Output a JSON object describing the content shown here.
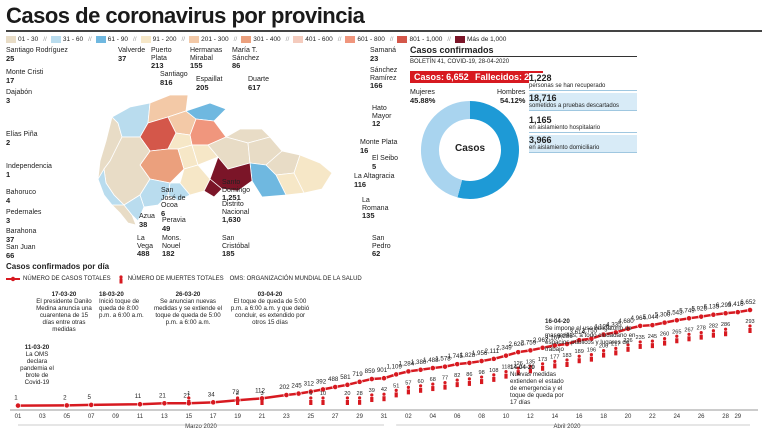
{
  "title": "Casos de coronavirus por provincia",
  "legend": [
    {
      "label": "01 - 30",
      "color": "#e8dcc6"
    },
    {
      "label": "31 - 60",
      "color": "#b9dcee"
    },
    {
      "label": "61 - 90",
      "color": "#6fb8e0"
    },
    {
      "label": "91 - 200",
      "color": "#f6e7c7"
    },
    {
      "label": "201 - 300",
      "color": "#f3c9a7"
    },
    {
      "label": "301 - 400",
      "color": "#eba07d"
    },
    {
      "label": "401 - 600",
      "color": "#f4cbbd"
    },
    {
      "label": "601 - 800",
      "color": "#f0967d"
    },
    {
      "label": "801 - 1,000",
      "color": "#d4574a"
    },
    {
      "label": "Más de 1,000",
      "color": "#7b1528"
    }
  ],
  "map_labels": {
    "santiago_rodriguez": {
      "name": "Santiago Rodríguez",
      "value": "25"
    },
    "monte_cristi": {
      "name": "Monte Cristi",
      "value": "17"
    },
    "valverde": {
      "name": "Valverde",
      "value": "37"
    },
    "puerto_plata": {
      "name": "Puerto Plata",
      "value": "213"
    },
    "santiago": {
      "name": "Santiago",
      "value": "816"
    },
    "hermanas_mirabal": {
      "name": "Hermanas Mirabal",
      "value": "155"
    },
    "maria_t_sanchez": {
      "name": "María T. Sánchez",
      "value": "86"
    },
    "espaillat": {
      "name": "Espaillat",
      "value": "205"
    },
    "duarte": {
      "name": "Duarte",
      "value": "617"
    },
    "samana": {
      "name": "Samaná",
      "value": "23"
    },
    "sanchez_ramirez": {
      "name": "Sánchez Ramírez",
      "value": "166"
    },
    "hato_mayor": {
      "name": "Hato Mayor",
      "value": "12"
    },
    "monte_plata": {
      "name": "Monte Plata",
      "value": "16"
    },
    "el_seibo": {
      "name": "El Seibo",
      "value": "5"
    },
    "la_altagracia": {
      "name": "La Altagracia",
      "value": "116"
    },
    "la_romana": {
      "name": "La Romana",
      "value": "135"
    },
    "san_pedro": {
      "name": "San Pedro",
      "value": "62"
    },
    "dajabon": {
      "name": "Dajabón",
      "value": "3"
    },
    "elias_pina": {
      "name": "Elías Piña",
      "value": "2"
    },
    "independencia": {
      "name": "Independencia",
      "value": "1"
    },
    "bahoruco": {
      "name": "Bahoruco",
      "value": "4"
    },
    "pedernales": {
      "name": "Pedernales",
      "value": "3"
    },
    "barahona": {
      "name": "Barahona",
      "value": "37"
    },
    "san_juan": {
      "name": "San Juan",
      "value": "66"
    },
    "azua": {
      "name": "Azua",
      "value": "38"
    },
    "san_jose_ocoa": {
      "name": "San José de Ocoa",
      "value": "6"
    },
    "peravia": {
      "name": "Peravia",
      "value": "49"
    },
    "la_vega": {
      "name": "La Vega",
      "value": "488"
    },
    "monsenor_nouel": {
      "name": "Mons. Nouel",
      "value": "182"
    },
    "santo_domingo": {
      "name": "Santo Domingo",
      "value": "1,251"
    },
    "distrito_nacional": {
      "name": "Distrito Nacional",
      "value": "1,630"
    },
    "san_cristobal": {
      "name": "San Cristóbal",
      "value": "185"
    }
  },
  "summary": {
    "title": "Casos confirmados",
    "bulletin": "BOLETÍN 41, COVID-19, 28-04-2020",
    "casos_label": "Casos:",
    "casos_value": "6,652",
    "fallecidos_label": "Fallecidos:",
    "fallecidos_value": "293",
    "donut_center": "Casos",
    "mujeres_label": "Mujeres",
    "mujeres_pct": 45.88,
    "mujeres_text": "45.88%",
    "hombres_label": "Hombres",
    "hombres_pct": 54.12,
    "hombres_text": "54.12%",
    "mujeres_color": "#a9d4ef",
    "hombres_color": "#1e9ad6",
    "stats": [
      {
        "value": "1,228",
        "desc": "personas se han recuperado"
      },
      {
        "value": "18,716",
        "desc": "sometidos a pruebas descartados"
      },
      {
        "value": "1,165",
        "desc": "en aislamiento hospitalario"
      },
      {
        "value": "3,966",
        "desc": "en aislamiento domiciliario"
      }
    ]
  },
  "chart_header": "Casos confirmados por día",
  "chart_legend": {
    "cases": "NÚMERO DE CASOS TOTALES",
    "deaths": "NÚMERO DE MUERTES TOTALES",
    "oms": "OMS: ORGANIZACIÓN MUNDIAL DE LA SALUD"
  },
  "annotations": {
    "a1": {
      "date": "11-03-20",
      "text": "La OMS declara pandemia el brote de Covid-19"
    },
    "a2": {
      "date": "17-03-20",
      "text": "El presidente Danilo Medina anuncia una cuarentena de 15 días entre otras medidas"
    },
    "a3": {
      "date": "18-03-20",
      "text": "Inició toque de queda de 8:00 p.m. a 6:00 a.m."
    },
    "a4": {
      "date": "26-03-20",
      "text": "Se anuncian nuevas medidas y se extiende el toque de queda de 5:00 p.m. a 6:00 a.m."
    },
    "a5": {
      "date": "03-04-20",
      "text": "El toque de queda de 5:00 p.m. a 6:00 a.m. y que debió concluir, es extendido por otros 15 días"
    },
    "a6": {
      "date": "14-04-20",
      "text": "Nuevas medidas extienden el estado de emergencia y el toque de queda por 17 días"
    },
    "a7": {
      "date": "16-04-20",
      "text": "Se impone el uso obligatorio de mascarillas, a todo ciudadano en espacios públicos y lugares de trabajo"
    }
  },
  "chart_data": {
    "type": "line",
    "title": "Casos confirmados por día",
    "x_ticks_march": [
      "01",
      "03",
      "05",
      "07",
      "09",
      "11",
      "13",
      "15",
      "17",
      "19",
      "21",
      "23",
      "25",
      "27",
      "29",
      "31"
    ],
    "x_ticks_april": [
      "02",
      "04",
      "06",
      "08",
      "10",
      "12",
      "14",
      "16",
      "18",
      "20",
      "22",
      "24",
      "26",
      "28",
      "29"
    ],
    "x_month_labels": [
      "Marzo 2020",
      "Abril 2020"
    ],
    "series": [
      {
        "name": "NÚMERO DE CASOS TOTALES",
        "color": "#d71920",
        "points": [
          {
            "x": "2020-03-01",
            "y": 1
          },
          {
            "x": "2020-03-05",
            "y": 2
          },
          {
            "x": "2020-03-07",
            "y": 5
          },
          {
            "x": "2020-03-11",
            "y": 11
          },
          {
            "x": "2020-03-13",
            "y": 21
          },
          {
            "x": "2020-03-15",
            "y": 21
          },
          {
            "x": "2020-03-17",
            "y": 34
          },
          {
            "x": "2020-03-19",
            "y": 72
          },
          {
            "x": "2020-03-21",
            "y": 112
          },
          {
            "x": "2020-03-23",
            "y": 202
          },
          {
            "x": "2020-03-24",
            "y": 245
          },
          {
            "x": "2020-03-25",
            "y": 312
          },
          {
            "x": "2020-03-26",
            "y": 392
          },
          {
            "x": "2020-03-27",
            "y": 488
          },
          {
            "x": "2020-03-28",
            "y": 581
          },
          {
            "x": "2020-03-29",
            "y": 719
          },
          {
            "x": "2020-03-30",
            "y": 859
          },
          {
            "x": "2020-03-31",
            "y": 901
          },
          {
            "x": "2020-04-01",
            "y": 1109
          },
          {
            "x": "2020-04-02",
            "y": 1284
          },
          {
            "x": "2020-04-03",
            "y": 1380
          },
          {
            "x": "2020-04-04",
            "y": 1488
          },
          {
            "x": "2020-04-05",
            "y": 1578
          },
          {
            "x": "2020-04-06",
            "y": 1745
          },
          {
            "x": "2020-04-07",
            "y": 1828
          },
          {
            "x": "2020-04-08",
            "y": 1956
          },
          {
            "x": "2020-04-09",
            "y": 2111
          },
          {
            "x": "2020-04-10",
            "y": 2349
          },
          {
            "x": "2020-04-11",
            "y": 2620
          },
          {
            "x": "2020-04-12",
            "y": 2759
          },
          {
            "x": "2020-04-13",
            "y": 2967
          },
          {
            "x": "2020-04-14",
            "y": 3167
          },
          {
            "x": "2020-04-15",
            "y": 3286
          },
          {
            "x": "2020-04-16",
            "y": 3614
          },
          {
            "x": "2020-04-17",
            "y": 3755
          },
          {
            "x": "2020-04-18",
            "y": 4126
          },
          {
            "x": "2020-04-19",
            "y": 4335
          },
          {
            "x": "2020-04-20",
            "y": 4680
          },
          {
            "x": "2020-04-21",
            "y": 4964
          },
          {
            "x": "2020-04-22",
            "y": 5044
          },
          {
            "x": "2020-04-23",
            "y": 5300
          },
          {
            "x": "2020-04-24",
            "y": 5543
          },
          {
            "x": "2020-04-25",
            "y": 5749
          },
          {
            "x": "2020-04-26",
            "y": 5926
          },
          {
            "x": "2020-04-27",
            "y": 6135
          },
          {
            "x": "2020-04-28",
            "y": 6293
          },
          {
            "x": "2020-04-29",
            "y": 6416
          },
          {
            "x": "2020-04-30",
            "y": 6652
          }
        ]
      },
      {
        "name": "NÚMERO DE MUERTES TOTALES",
        "color": "#d71920",
        "points": [
          {
            "x": "2020-03-15",
            "y": 1
          },
          {
            "x": "2020-03-19",
            "y": 2
          },
          {
            "x": "2020-03-21",
            "y": 3
          },
          {
            "x": "2020-03-25",
            "y": 6
          },
          {
            "x": "2020-03-26",
            "y": 10
          },
          {
            "x": "2020-03-28",
            "y": 20
          },
          {
            "x": "2020-03-29",
            "y": 28
          },
          {
            "x": "2020-03-30",
            "y": 39
          },
          {
            "x": "2020-03-31",
            "y": 42
          },
          {
            "x": "2020-04-01",
            "y": 51
          },
          {
            "x": "2020-04-02",
            "y": 57
          },
          {
            "x": "2020-04-03",
            "y": 60
          },
          {
            "x": "2020-04-04",
            "y": 68
          },
          {
            "x": "2020-04-05",
            "y": 77
          },
          {
            "x": "2020-04-06",
            "y": 82
          },
          {
            "x": "2020-04-07",
            "y": 86
          },
          {
            "x": "2020-04-08",
            "y": 98
          },
          {
            "x": "2020-04-09",
            "y": 108
          },
          {
            "x": "2020-04-10",
            "y": 118
          },
          {
            "x": "2020-04-11",
            "y": 126
          },
          {
            "x": "2020-04-12",
            "y": 135
          },
          {
            "x": "2020-04-13",
            "y": 173
          },
          {
            "x": "2020-04-14",
            "y": 177
          },
          {
            "x": "2020-04-15",
            "y": 183
          },
          {
            "x": "2020-04-16",
            "y": 189
          },
          {
            "x": "2020-04-17",
            "y": 196
          },
          {
            "x": "2020-04-18",
            "y": 200
          },
          {
            "x": "2020-04-19",
            "y": 217
          },
          {
            "x": "2020-04-20",
            "y": 226
          },
          {
            "x": "2020-04-21",
            "y": 235
          },
          {
            "x": "2020-04-22",
            "y": 245
          },
          {
            "x": "2020-04-23",
            "y": 260
          },
          {
            "x": "2020-04-24",
            "y": 265
          },
          {
            "x": "2020-04-25",
            "y": 267
          },
          {
            "x": "2020-04-26",
            "y": 278
          },
          {
            "x": "2020-04-27",
            "y": 282
          },
          {
            "x": "2020-04-28",
            "y": 286
          },
          {
            "x": "2020-04-30",
            "y": 293
          }
        ]
      }
    ]
  }
}
